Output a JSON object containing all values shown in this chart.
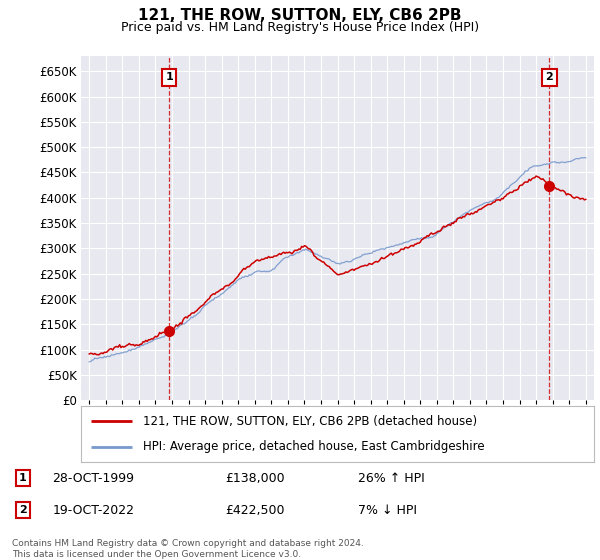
{
  "title": "121, THE ROW, SUTTON, ELY, CB6 2PB",
  "subtitle": "Price paid vs. HM Land Registry's House Price Index (HPI)",
  "ytick_values": [
    0,
    50000,
    100000,
    150000,
    200000,
    250000,
    300000,
    350000,
    400000,
    450000,
    500000,
    550000,
    600000,
    650000
  ],
  "ylim": [
    0,
    680000
  ],
  "xlim": [
    1994.5,
    2025.5
  ],
  "background_color": "#ffffff",
  "plot_bg_color": "#e8e8f0",
  "grid_color": "#ffffff",
  "sale1_x": 1999.83,
  "sale1_y": 138000,
  "sale2_x": 2022.8,
  "sale2_y": 422500,
  "legend_line1": "121, THE ROW, SUTTON, ELY, CB6 2PB (detached house)",
  "legend_line2": "HPI: Average price, detached house, East Cambridgeshire",
  "footer": "Contains HM Land Registry data © Crown copyright and database right 2024.\nThis data is licensed under the Open Government Licence v3.0.",
  "line_color_red": "#cc0000",
  "line_color_blue": "#7799cc",
  "box_color": "#cc0000"
}
